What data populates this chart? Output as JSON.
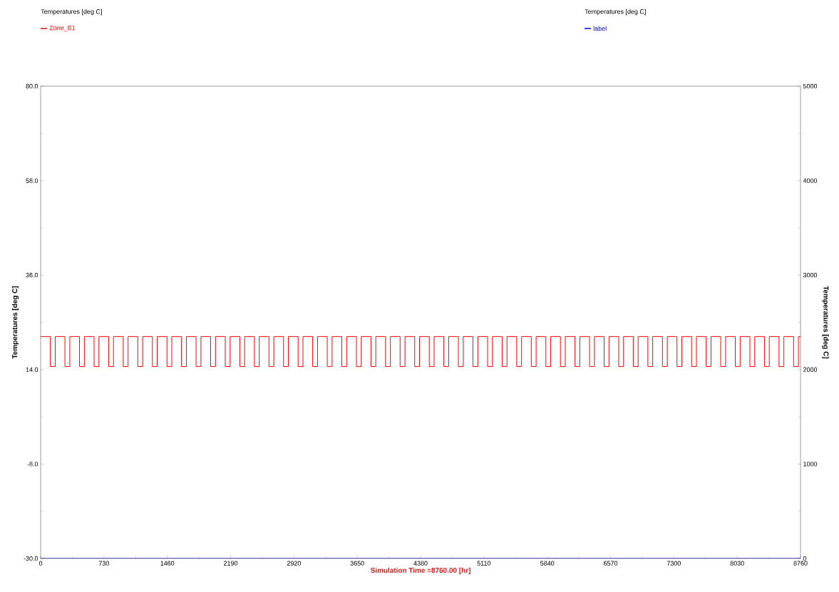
{
  "chart_data": {
    "type": "line",
    "legend": "top",
    "legend_title": "Temperatures  [deg C]",
    "xlabel": "Simulation Time =8760.00 [hr]",
    "ylabel": "Temperatures  [deg C]",
    "y2label": "Temperatures  [deg C]",
    "xlim": [
      0,
      8760
    ],
    "xticks": [
      0,
      730,
      1460,
      2190,
      2920,
      3650,
      4380,
      5110,
      5840,
      6570,
      7300,
      8030,
      8760
    ],
    "ylim": [
      -30,
      80
    ],
    "yticks": [
      {
        "value": -30,
        "label": "-30.0"
      },
      {
        "value": -8,
        "label": "-8.0"
      },
      {
        "value": 14,
        "label": "14.0"
      },
      {
        "value": 36,
        "label": "36.0"
      },
      {
        "value": 58,
        "label": "58.0"
      },
      {
        "value": 80,
        "label": "80.0"
      }
    ],
    "y2lim": [
      0,
      5000
    ],
    "y2ticks": [
      0,
      1000,
      2000,
      3000,
      4000,
      5000
    ],
    "series": [
      {
        "name": "Zone_B1",
        "color": "#ff0000",
        "type": "step",
        "x": [
          0,
          112,
          168,
          280,
          336,
          448,
          504,
          616,
          672,
          784,
          840,
          952,
          1008,
          1120,
          1176,
          1288,
          1344,
          1456,
          1512,
          1624,
          1680,
          1792,
          1848,
          1960,
          2016,
          2128,
          2184,
          2296,
          2352,
          2464,
          2520,
          2632,
          2688,
          2800,
          2856,
          2968,
          3024,
          3136,
          3192,
          3304,
          3360,
          3472,
          3528,
          3640,
          3696,
          3808,
          3864,
          3976,
          4032,
          4144,
          4200,
          4312,
          4368,
          4480,
          4536,
          4648,
          4704,
          4816,
          4872,
          4984,
          5040,
          5152,
          5208,
          5320,
          5376,
          5488,
          5544,
          5656,
          5712,
          5824,
          5880,
          5992,
          6048,
          6160,
          6216,
          6328,
          6384,
          6496,
          6552,
          6664,
          6720,
          6832,
          6888,
          7000,
          7056,
          7168,
          7224,
          7336,
          7392,
          7504,
          7560,
          7672,
          7728,
          7840,
          7896,
          8008,
          8064,
          8176,
          8232,
          8344,
          8400,
          8512,
          8568,
          8680,
          8736,
          8760
        ],
        "values": [
          21.7,
          14.7,
          21.7,
          14.7,
          21.7,
          14.7,
          21.7,
          14.7,
          21.7,
          14.7,
          21.7,
          14.7,
          21.7,
          14.7,
          21.7,
          14.7,
          21.7,
          14.7,
          21.7,
          14.7,
          21.7,
          14.7,
          21.7,
          14.7,
          21.7,
          14.7,
          21.7,
          14.7,
          21.7,
          14.7,
          21.7,
          14.7,
          21.7,
          14.7,
          21.7,
          14.7,
          21.7,
          14.7,
          21.7,
          14.7,
          21.7,
          14.7,
          21.7,
          14.7,
          21.7,
          14.7,
          21.7,
          14.7,
          21.7,
          14.7,
          21.7,
          14.7,
          21.7,
          14.7,
          21.7,
          14.7,
          21.7,
          14.7,
          21.7,
          14.7,
          21.7,
          14.7,
          21.7,
          14.7,
          21.7,
          14.7,
          21.7,
          14.7,
          21.7,
          14.7,
          21.7,
          14.7,
          21.7,
          14.7,
          21.7,
          14.7,
          21.7,
          14.7,
          21.7,
          14.7,
          21.7,
          14.7,
          21.7,
          14.7,
          21.7,
          14.7,
          21.7,
          14.7,
          21.7,
          14.7,
          21.7,
          14.7,
          21.7,
          14.7,
          21.7,
          14.7,
          21.7,
          14.7,
          21.7,
          14.7,
          21.7,
          14.7,
          21.7,
          14.7,
          21.7,
          21.7
        ]
      },
      {
        "name": "label",
        "color": "#0000cc",
        "axis": "y2",
        "x": [
          0,
          8760
        ],
        "values": [
          0,
          0
        ]
      }
    ]
  }
}
